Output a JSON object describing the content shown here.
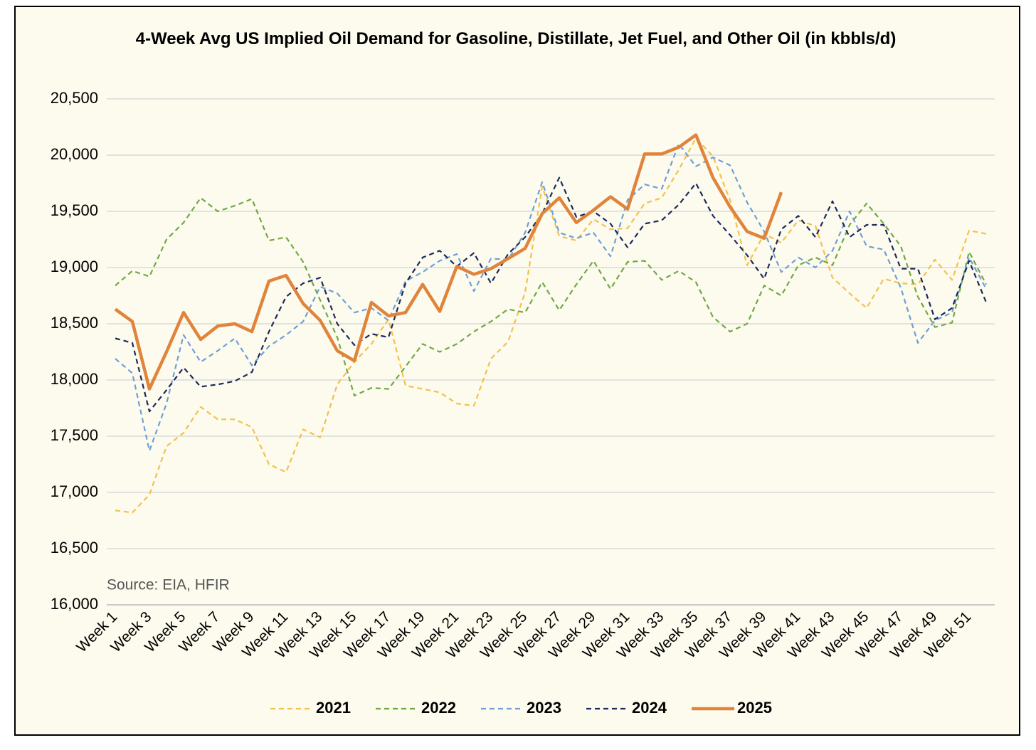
{
  "chart_data": {
    "type": "line",
    "title": "4-Week Avg US Implied Oil Demand for Gasoline, Distillate, Jet Fuel, and Other Oil (in kbbls/d)",
    "annotation": "Source: EIA, HFIR",
    "categories": [
      "Week 1",
      null,
      "Week 3",
      null,
      "Week 5",
      null,
      "Week 7",
      null,
      "Week 9",
      null,
      "Week 11",
      null,
      "Week 13",
      null,
      "Week 15",
      null,
      "Week 17",
      null,
      "Week 19",
      null,
      "Week 21",
      null,
      "Week 23",
      null,
      "Week 25",
      null,
      "Week 27",
      null,
      "Week 29",
      null,
      "Week 31",
      null,
      "Week 33",
      null,
      "Week 35",
      null,
      "Week 37",
      null,
      "Week 39",
      null,
      "Week 41",
      null,
      "Week 43",
      null,
      "Week 45",
      null,
      "Week 47",
      null,
      "Week 49",
      null,
      "Week 51",
      null
    ],
    "ylim": [
      16000,
      20500
    ],
    "yticks": [
      {
        "value": 16000,
        "label": "16,000"
      },
      {
        "value": 16500,
        "label": "16,500"
      },
      {
        "value": 17000,
        "label": "17,000"
      },
      {
        "value": 17500,
        "label": "17,500"
      },
      {
        "value": 18000,
        "label": "18,000"
      },
      {
        "value": 18500,
        "label": "18,500"
      },
      {
        "value": 19000,
        "label": "19,000"
      },
      {
        "value": 19500,
        "label": "19,500"
      },
      {
        "value": 20000,
        "label": "20,000"
      },
      {
        "value": 20500,
        "label": "20,500"
      }
    ],
    "grid": true,
    "legend": "bottom",
    "series": [
      {
        "name": "2021",
        "color": "#f2c14e",
        "dashed": true,
        "values": [
          16840,
          16820,
          16980,
          17410,
          17530,
          17760,
          17650,
          17650,
          17580,
          17250,
          17180,
          17560,
          17490,
          17960,
          18160,
          18320,
          18540,
          17950,
          17920,
          17890,
          17790,
          17770,
          18190,
          18340,
          18780,
          19720,
          19280,
          19240,
          19430,
          19340,
          19350,
          19570,
          19620,
          19870,
          20150,
          19990,
          19600,
          19020,
          19300,
          19220,
          19420,
          19370,
          18910,
          18770,
          18640,
          18900,
          18860,
          18850,
          19070,
          18890,
          19330,
          19300
        ]
      },
      {
        "name": "2022",
        "color": "#70a845",
        "dashed": true,
        "values": [
          18840,
          18970,
          18920,
          19250,
          19400,
          19620,
          19500,
          19550,
          19610,
          19240,
          19270,
          19050,
          18710,
          18380,
          17860,
          17930,
          17920,
          18120,
          18320,
          18250,
          18320,
          18430,
          18520,
          18630,
          18600,
          18870,
          18620,
          18850,
          19060,
          18810,
          19050,
          19060,
          18890,
          18970,
          18870,
          18560,
          18430,
          18500,
          18840,
          18750,
          19020,
          19090,
          19020,
          19380,
          19570,
          19390,
          19190,
          18740,
          18470,
          18510,
          19140,
          18850
        ]
      },
      {
        "name": "2023",
        "color": "#6f9fd6",
        "dashed": true,
        "values": [
          18190,
          18060,
          17370,
          17790,
          18400,
          18160,
          18260,
          18370,
          18130,
          18300,
          18400,
          18520,
          18830,
          18770,
          18600,
          18640,
          18530,
          18880,
          18960,
          19060,
          19120,
          18790,
          19080,
          19070,
          19310,
          19760,
          19310,
          19260,
          19310,
          19100,
          19600,
          19740,
          19700,
          20100,
          19900,
          19980,
          19910,
          19580,
          19320,
          18960,
          19090,
          19000,
          19150,
          19500,
          19190,
          19160,
          18820,
          18330,
          18530,
          18600,
          19090,
          18810
        ]
      },
      {
        "name": "2024",
        "color": "#1c2a5c",
        "dashed": true,
        "values": [
          18370,
          18330,
          17720,
          17910,
          18110,
          17940,
          17960,
          17990,
          18070,
          18430,
          18740,
          18860,
          18910,
          18500,
          18310,
          18410,
          18380,
          18860,
          19090,
          19150,
          19010,
          19130,
          18860,
          19120,
          19270,
          19480,
          19800,
          19450,
          19500,
          19390,
          19180,
          19390,
          19420,
          19560,
          19750,
          19460,
          19290,
          19110,
          18900,
          19340,
          19460,
          19270,
          19590,
          19270,
          19380,
          19380,
          18990,
          18990,
          18540,
          18640,
          19060,
          18690
        ]
      },
      {
        "name": "2025",
        "color": "#e0843c",
        "dashed": false,
        "values": [
          18630,
          18520,
          17920,
          18250,
          18600,
          18360,
          18480,
          18500,
          18430,
          18880,
          18930,
          18680,
          18530,
          18260,
          18170,
          18690,
          18570,
          18600,
          18850,
          18610,
          19010,
          18940,
          18990,
          19080,
          19170,
          19480,
          19620,
          19400,
          19510,
          19630,
          19520,
          20010,
          20010,
          20070,
          20180,
          19800,
          19540,
          19320,
          19260,
          19670,
          null,
          null,
          null,
          null,
          null,
          null,
          null,
          null,
          null,
          null,
          null,
          null
        ]
      }
    ]
  }
}
